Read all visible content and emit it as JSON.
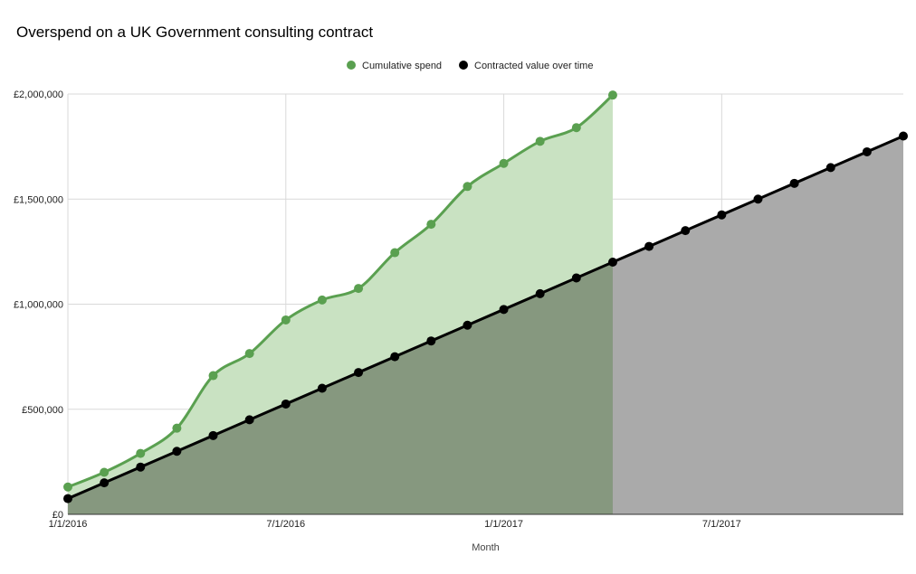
{
  "chart_data": {
    "type": "area",
    "title": "Overspend on a UK Government consulting contract",
    "xlabel": "Month",
    "ylabel": "",
    "x_ticks": [
      "1/1/2016",
      "7/1/2016",
      "1/1/2017",
      "7/1/2017"
    ],
    "y_ticks": [
      "£0",
      "£500,000",
      "£1,000,000",
      "£1,500,000",
      "£2,000,000"
    ],
    "ylim": [
      0,
      2000000
    ],
    "x_axis_months": {
      "first": "1/1/2016",
      "last": "12/1/2017"
    },
    "grid": true,
    "legend_position": "top-center",
    "series": [
      {
        "name": "Cumulative spend",
        "color": "#5aa050",
        "fill": "#c9e2c2",
        "values": [
          130000,
          200000,
          290000,
          410000,
          660000,
          765000,
          925000,
          1020000,
          1075000,
          1245000,
          1380000,
          1560000,
          1670000,
          1775000,
          1840000,
          1995000
        ]
      },
      {
        "name": "Contracted value over time",
        "color": "#000000",
        "fill": "#aaaaaa",
        "values": [
          75000,
          150000,
          225000,
          300000,
          375000,
          450000,
          525000,
          600000,
          675000,
          750000,
          825000,
          900000,
          975000,
          1050000,
          1125000,
          1200000,
          1275000,
          1350000,
          1425000,
          1500000,
          1575000,
          1650000,
          1725000,
          1800000
        ]
      }
    ]
  }
}
